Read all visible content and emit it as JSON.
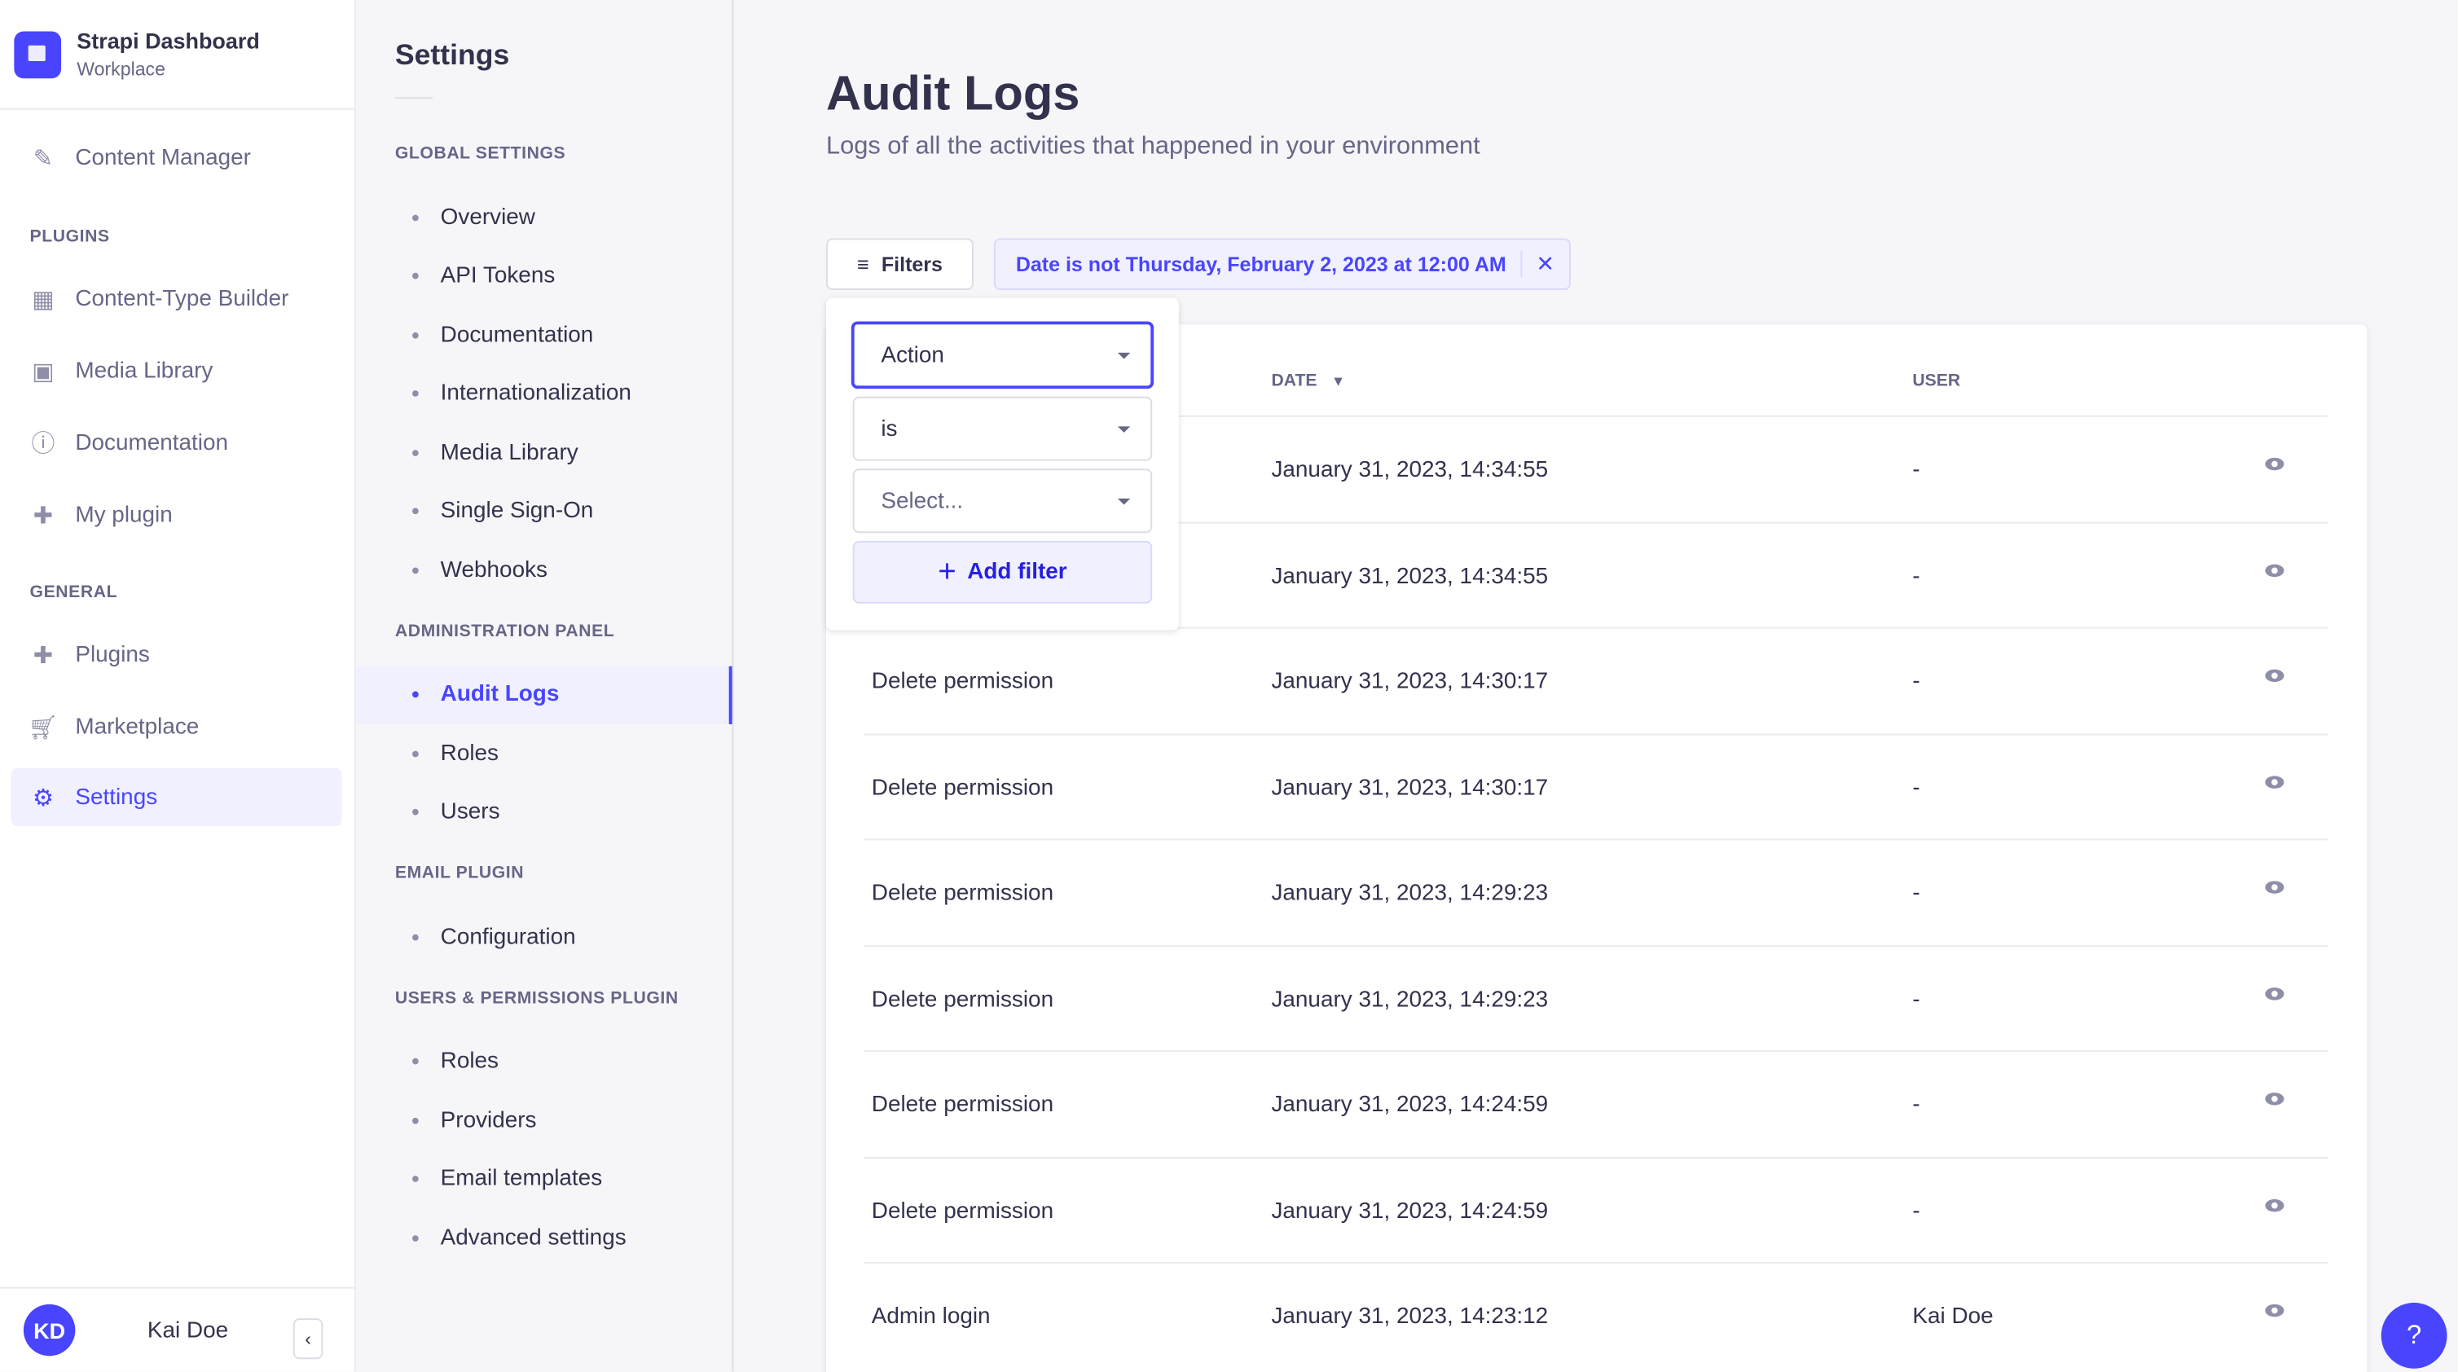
{
  "brand": {
    "title": "Strapi Dashboard",
    "subtitle": "Workplace"
  },
  "nav": {
    "content_manager": "Content Manager",
    "plugins_heading": "PLUGINS",
    "plugins": [
      "Content-Type Builder",
      "Media Library",
      "Documentation",
      "My plugin"
    ],
    "general_heading": "GENERAL",
    "general": [
      "Plugins",
      "Marketplace",
      "Settings"
    ],
    "active": "Settings"
  },
  "user": {
    "initials": "KD",
    "name": "Kai Doe"
  },
  "settings": {
    "title": "Settings",
    "sections": [
      {
        "heading": "GLOBAL SETTINGS",
        "items": [
          "Overview",
          "API Tokens",
          "Documentation",
          "Internationalization",
          "Media Library",
          "Single Sign-On",
          "Webhooks"
        ]
      },
      {
        "heading": "ADMINISTRATION PANEL",
        "items": [
          "Audit Logs",
          "Roles",
          "Users"
        ]
      },
      {
        "heading": "EMAIL PLUGIN",
        "items": [
          "Configuration"
        ]
      },
      {
        "heading": "USERS & PERMISSIONS PLUGIN",
        "items": [
          "Roles",
          "Providers",
          "Email templates",
          "Advanced settings"
        ]
      }
    ],
    "active": "Audit Logs"
  },
  "page": {
    "title": "Audit Logs",
    "description": "Logs of all the activities that happened in your environment"
  },
  "filters": {
    "button": "Filters",
    "active_filter": "Date is not Thursday, February 2, 2023 at 12:00 AM",
    "popover": {
      "field": "Action",
      "operator": "is",
      "value_placeholder": "Select...",
      "add_label": "Add filter"
    }
  },
  "table": {
    "headers": {
      "date": "DATE",
      "user": "USER"
    },
    "rows": [
      {
        "action": "",
        "date": "January 31, 2023, 14:34:55",
        "user": "-"
      },
      {
        "action": "",
        "date": "January 31, 2023, 14:34:55",
        "user": "-"
      },
      {
        "action": "Delete permission",
        "date": "January 31, 2023, 14:30:17",
        "user": "-"
      },
      {
        "action": "Delete permission",
        "date": "January 31, 2023, 14:30:17",
        "user": "-"
      },
      {
        "action": "Delete permission",
        "date": "January 31, 2023, 14:29:23",
        "user": "-"
      },
      {
        "action": "Delete permission",
        "date": "January 31, 2023, 14:29:23",
        "user": "-"
      },
      {
        "action": "Delete permission",
        "date": "January 31, 2023, 14:24:59",
        "user": "-"
      },
      {
        "action": "Delete permission",
        "date": "January 31, 2023, 14:24:59",
        "user": "-"
      },
      {
        "action": "Admin login",
        "date": "January 31, 2023, 14:23:12",
        "user": "Kai Doe"
      }
    ]
  },
  "help": "?",
  "colors": {
    "primary": "#4945ff",
    "background": "#f6f6f9",
    "text": "#32324d"
  }
}
